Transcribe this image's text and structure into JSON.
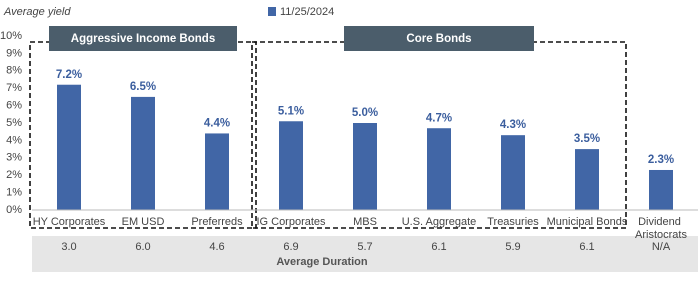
{
  "chart_data": {
    "type": "bar",
    "y_label": "Average yield",
    "categories": [
      "HY Corporates",
      "EM USD",
      "Preferreds",
      "IG Corporates",
      "MBS",
      "U.S. Aggregate",
      "Treasuries",
      "Municipal Bonds",
      "Dividend Aristocrats"
    ],
    "series": [
      {
        "name": "11/25/2024",
        "color": "#4166a6",
        "values": [
          7.2,
          6.5,
          4.4,
          5.1,
          5.0,
          4.7,
          4.3,
          3.5,
          2.3
        ],
        "value_labels": [
          "7.2%",
          "6.5%",
          "4.4%",
          "5.1%",
          "5.0%",
          "4.7%",
          "4.3%",
          "3.5%",
          "2.3%"
        ]
      }
    ],
    "ylim": [
      0,
      10
    ],
    "yticks": [
      {
        "value": 0,
        "label": "0%"
      },
      {
        "value": 1,
        "label": "1%"
      },
      {
        "value": 2,
        "label": "2%"
      },
      {
        "value": 3,
        "label": "3%"
      },
      {
        "value": 4,
        "label": "4%"
      },
      {
        "value": 5,
        "label": "5%"
      },
      {
        "value": 6,
        "label": "6%"
      },
      {
        "value": 7,
        "label": "7%"
      },
      {
        "value": 8,
        "label": "8%"
      },
      {
        "value": 9,
        "label": "9%"
      },
      {
        "value": 10,
        "label": "10%"
      }
    ],
    "groups": [
      "Aggressive Income Bonds",
      "Core Bonds"
    ],
    "duration": {
      "label": "Average Duration",
      "values": [
        "3.0",
        "6.0",
        "4.6",
        "6.9",
        "5.7",
        "6.1",
        "5.9",
        "6.1",
        "N/A"
      ]
    }
  }
}
